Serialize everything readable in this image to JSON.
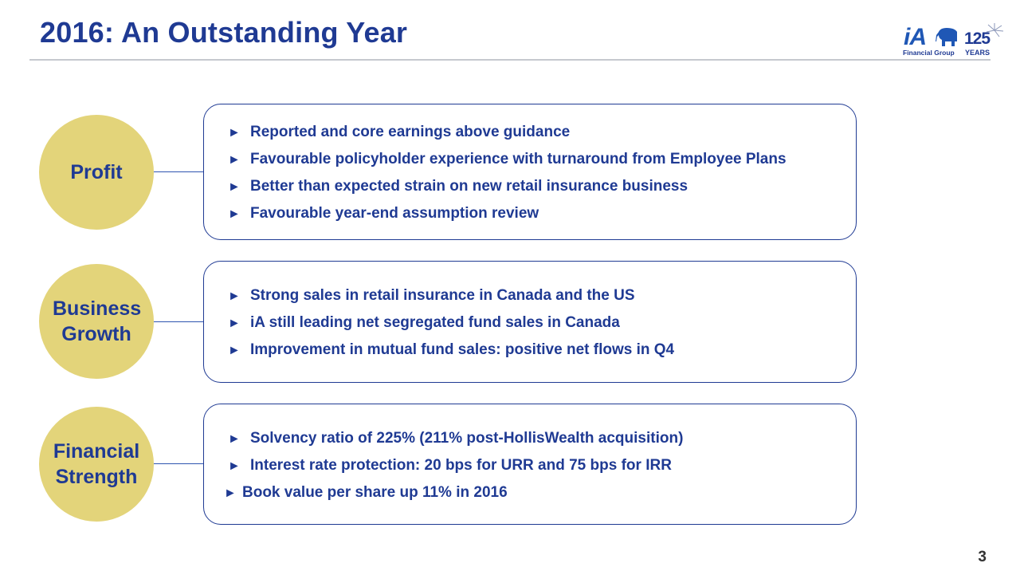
{
  "title": "2016: An Outstanding Year",
  "logo": {
    "brand": "iA",
    "subtitle": "Financial Group",
    "anniversary_number": "125",
    "anniversary_label": "YEARS"
  },
  "bullet_glyph": "►",
  "sections": [
    {
      "label": "Profit",
      "bullets": [
        "Reported and core earnings above guidance",
        "Favourable policyholder experience with turnaround from Employee Plans",
        "Better than expected strain on new retail insurance business",
        "Favourable year-end assumption review"
      ]
    },
    {
      "label": "Business Growth",
      "bullets": [
        "Strong sales in retail insurance in Canada and the US",
        "iA still leading net segregated fund sales in Canada",
        "Improvement in mutual fund sales:  positive net flows in Q4"
      ]
    },
    {
      "label": "Financial Strength",
      "bullets": [
        "Solvency ratio of 225% (211% post-HollisWealth acquisition)",
        "Interest rate protection:  20 bps for URR and 75 bps for IRR",
        "Book value per share up 11% in 2016"
      ]
    }
  ],
  "page_number": "3",
  "colors": {
    "title": "#1f3a93",
    "circle_fill": "#e3d47a",
    "box_border": "#1f3a93",
    "rule": "#c6c9cf"
  }
}
